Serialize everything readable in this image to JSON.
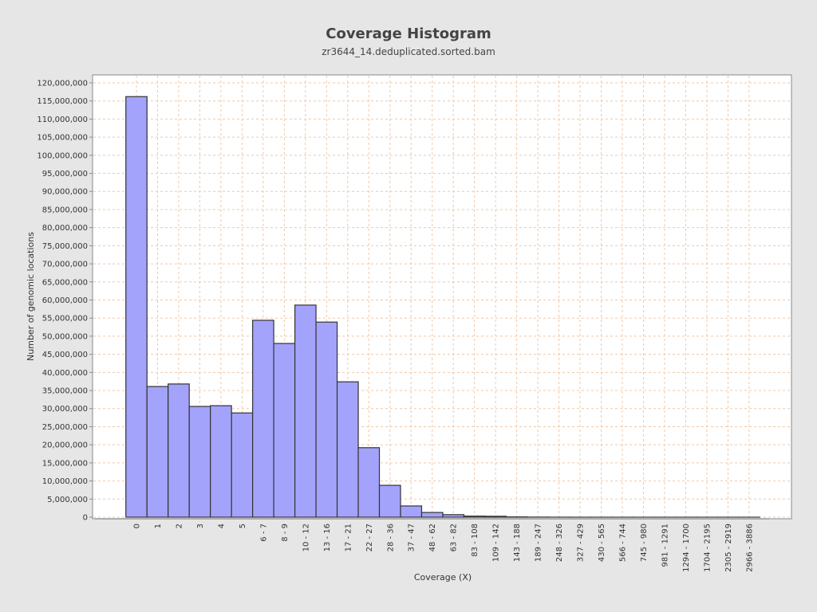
{
  "chart_data": {
    "type": "bar",
    "title": "Coverage Histogram",
    "subtitle": "zr3644_14.deduplicated.sorted.bam",
    "x_label": "Coverage (X)",
    "y_label": "Number of genomic locations",
    "categories": [
      "0",
      "1",
      "2",
      "3",
      "4",
      "5",
      "6 - 7",
      "8 - 9",
      "10 - 12",
      "13 - 16",
      "17 - 21",
      "22 - 27",
      "28 - 36",
      "37 - 47",
      "48 - 62",
      "63 - 82",
      "83 - 108",
      "109 - 142",
      "143 - 188",
      "189 - 247",
      "248 - 326",
      "327 - 429",
      "430 - 565",
      "566 - 744",
      "745 - 980",
      "981 - 1291",
      "1294 - 1700",
      "1704 - 2195",
      "2305 - 2919",
      "2966 - 3886"
    ],
    "values": [
      116200000,
      36100000,
      36800000,
      30600000,
      30800000,
      28800000,
      54400000,
      48000000,
      58600000,
      53900000,
      37400000,
      19200000,
      8800000,
      3100000,
      1300000,
      700000,
      300000,
      250000,
      80000,
      30000,
      10000,
      5000,
      2000,
      1000,
      500,
      200,
      100,
      50,
      20,
      10
    ],
    "color": "#a3a3fb",
    "ylim": [
      0,
      122200000
    ],
    "yticks": [
      {
        "value": 0,
        "label": "0"
      },
      {
        "value": 5000000,
        "label": "5,000,000"
      },
      {
        "value": 10000000,
        "label": "10,000,000"
      },
      {
        "value": 15000000,
        "label": "15,000,000"
      },
      {
        "value": 20000000,
        "label": "20,000,000"
      },
      {
        "value": 25000000,
        "label": "25,000,000"
      },
      {
        "value": 30000000,
        "label": "30,000,000"
      },
      {
        "value": 35000000,
        "label": "35,000,000"
      },
      {
        "value": 40000000,
        "label": "40,000,000"
      },
      {
        "value": 45000000,
        "label": "45,000,000"
      },
      {
        "value": 50000000,
        "label": "50,000,000"
      },
      {
        "value": 55000000,
        "label": "55,000,000"
      },
      {
        "value": 60000000,
        "label": "60,000,000"
      },
      {
        "value": 65000000,
        "label": "65,000,000"
      },
      {
        "value": 70000000,
        "label": "70,000,000"
      },
      {
        "value": 75000000,
        "label": "75,000,000"
      },
      {
        "value": 80000000,
        "label": "80,000,000"
      },
      {
        "value": 85000000,
        "label": "85,000,000"
      },
      {
        "value": 90000000,
        "label": "90,000,000"
      },
      {
        "value": 95000000,
        "label": "95,000,000"
      },
      {
        "value": 100000000,
        "label": "100,000,000"
      },
      {
        "value": 105000000,
        "label": "105,000,000"
      },
      {
        "value": 110000000,
        "label": "110,000,000"
      },
      {
        "value": 115000000,
        "label": "115,000,000"
      },
      {
        "value": 120000000,
        "label": "120,000,000"
      }
    ],
    "grid": true
  }
}
